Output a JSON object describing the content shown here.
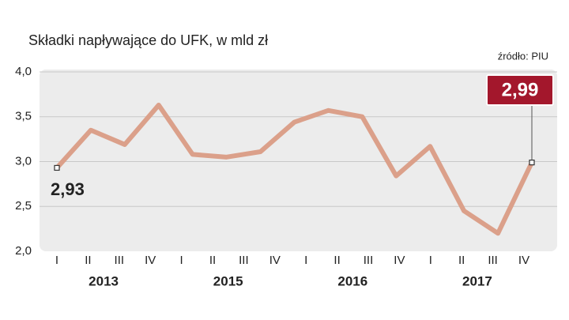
{
  "chart_data": {
    "type": "line",
    "title": "Składki napływające do UFK, w mld zł",
    "source": "źródło: PIU",
    "xtick_labels": [
      "I",
      "II",
      "III",
      "IV",
      "I",
      "II",
      "III",
      "IV",
      "I",
      "II",
      "III",
      "IV",
      "I",
      "II",
      "III",
      "IV"
    ],
    "year_labels": [
      "2013",
      "2015",
      "2016",
      "2017"
    ],
    "values": [
      2.93,
      3.35,
      3.19,
      3.63,
      3.08,
      3.05,
      3.11,
      3.44,
      3.57,
      3.5,
      2.84,
      3.17,
      2.45,
      2.2,
      2.99
    ],
    "value_labels": {
      "0": "2,93",
      "14": "2,99"
    },
    "color": "#dba08a",
    "ylim": [
      2.0,
      4.0
    ],
    "yticks": [
      {
        "value": 2.0,
        "label": "2,0"
      },
      {
        "value": 2.5,
        "label": "2,5"
      },
      {
        "value": 3.0,
        "label": "3,0"
      },
      {
        "value": 3.5,
        "label": "3,5"
      },
      {
        "value": 4.0,
        "label": "4,0"
      }
    ],
    "grid": true
  }
}
